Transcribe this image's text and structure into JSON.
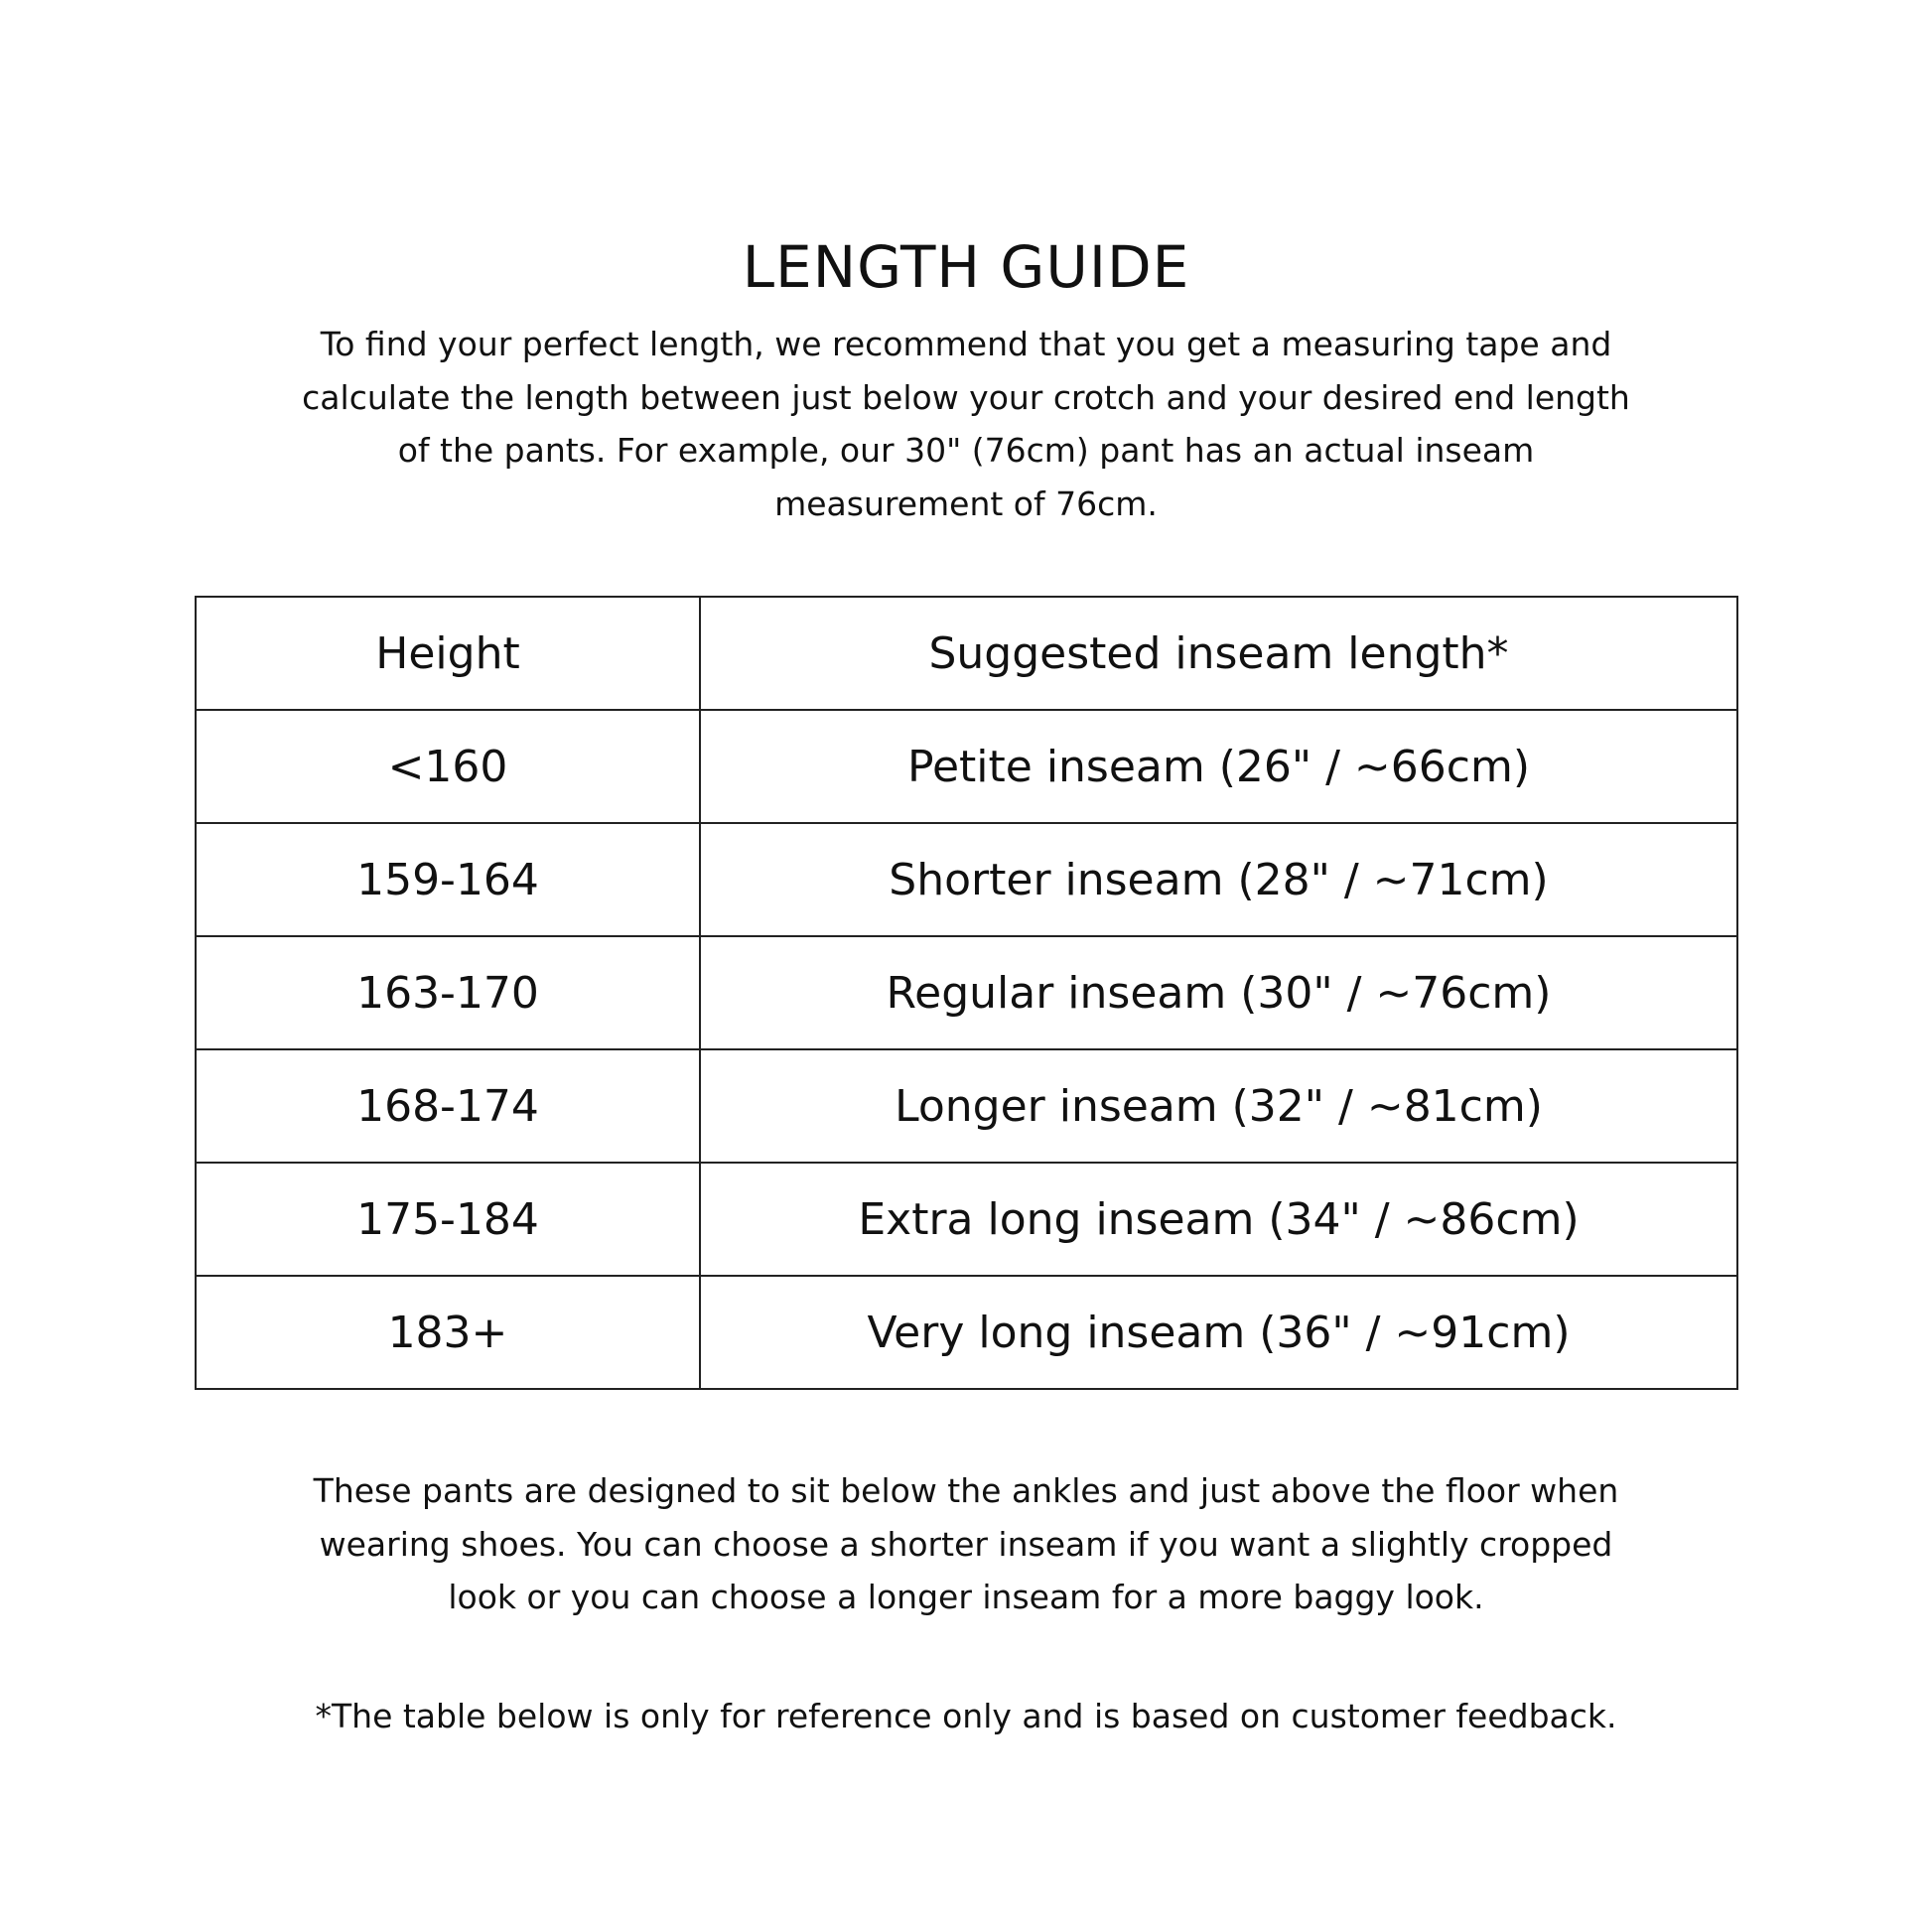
{
  "title": "LENGTH GUIDE",
  "intro_lines": [
    "To find your perfect length, we recommend that you get a measuring tape and",
    "calculate the length between just below your crotch and your desired end length",
    "of the pants. For example, our 30\" (76cm) pant has an actual inseam",
    "measurement of 76cm."
  ],
  "table": {
    "headers": [
      "Height",
      "Suggested inseam length*"
    ],
    "rows": [
      [
        "<160",
        "Petite inseam (26\" / ~66cm)"
      ],
      [
        "159-164",
        "Shorter inseam (28\" / ~71cm)"
      ],
      [
        "163-170",
        "Regular inseam (30\" / ~76cm)"
      ],
      [
        "168-174",
        "Longer inseam (32\" / ~81cm)"
      ],
      [
        "175-184",
        "Extra long inseam (34\" / ~86cm)"
      ],
      [
        "183+",
        "Very long inseam (36\" / ~91cm)"
      ]
    ]
  },
  "outro_lines": [
    "These pants are designed to sit below the ankles and just above the floor when",
    "wearing shoes. You can choose a shorter inseam if you want a slightly cropped",
    "look or you can choose a longer inseam for a more baggy look."
  ],
  "footnote": "*The table below is only for reference only and is based on customer feedback."
}
